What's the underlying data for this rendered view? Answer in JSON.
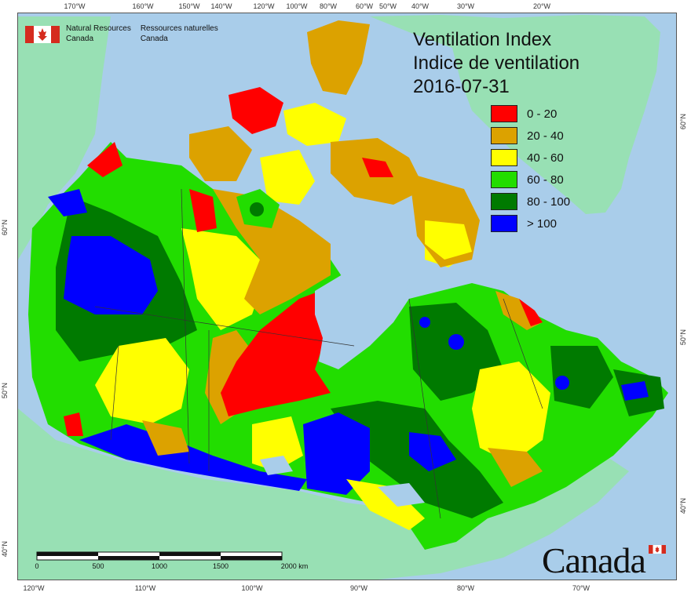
{
  "title": {
    "line1": "Ventilation Index",
    "line2": "Indice de ventilation",
    "date": "2016-07-31"
  },
  "legend": [
    {
      "label": "0 - 20",
      "color": "#ff0000"
    },
    {
      "label": "20 - 40",
      "color": "#dca200"
    },
    {
      "label": "40 - 60",
      "color": "#ffff00"
    },
    {
      "label": "60 - 80",
      "color": "#22dd00"
    },
    {
      "label": "80 - 100",
      "color": "#007a00"
    },
    {
      "label": "> 100",
      "color": "#0000ff"
    }
  ],
  "agency": {
    "english_line1": "Natural Resources",
    "english_line2": "Canada",
    "french_line1": "Ressources naturelles",
    "french_line2": "Canada"
  },
  "graticule": {
    "top": [
      "170°W",
      "160°W",
      "150°W",
      "140°W",
      "120°W",
      "100°W",
      "80°W",
      "60°W",
      "50°W",
      "40°W",
      "30°W",
      "20°W"
    ],
    "bottom": [
      "120°W",
      "110°W",
      "100°W",
      "90°W",
      "80°W",
      "70°W"
    ],
    "left": [
      "60°N",
      "50°N",
      "40°N"
    ],
    "right": [
      "60°N",
      "50°N",
      "40°N"
    ]
  },
  "scale_bar": {
    "labels": [
      "0",
      "500",
      "1000",
      "1500",
      "2000 km"
    ]
  },
  "wordmark": "Canada",
  "colors": {
    "ocean": "#a9cdea",
    "land_outside": "#98e0b4",
    "flag_red": "#d52b1e"
  }
}
